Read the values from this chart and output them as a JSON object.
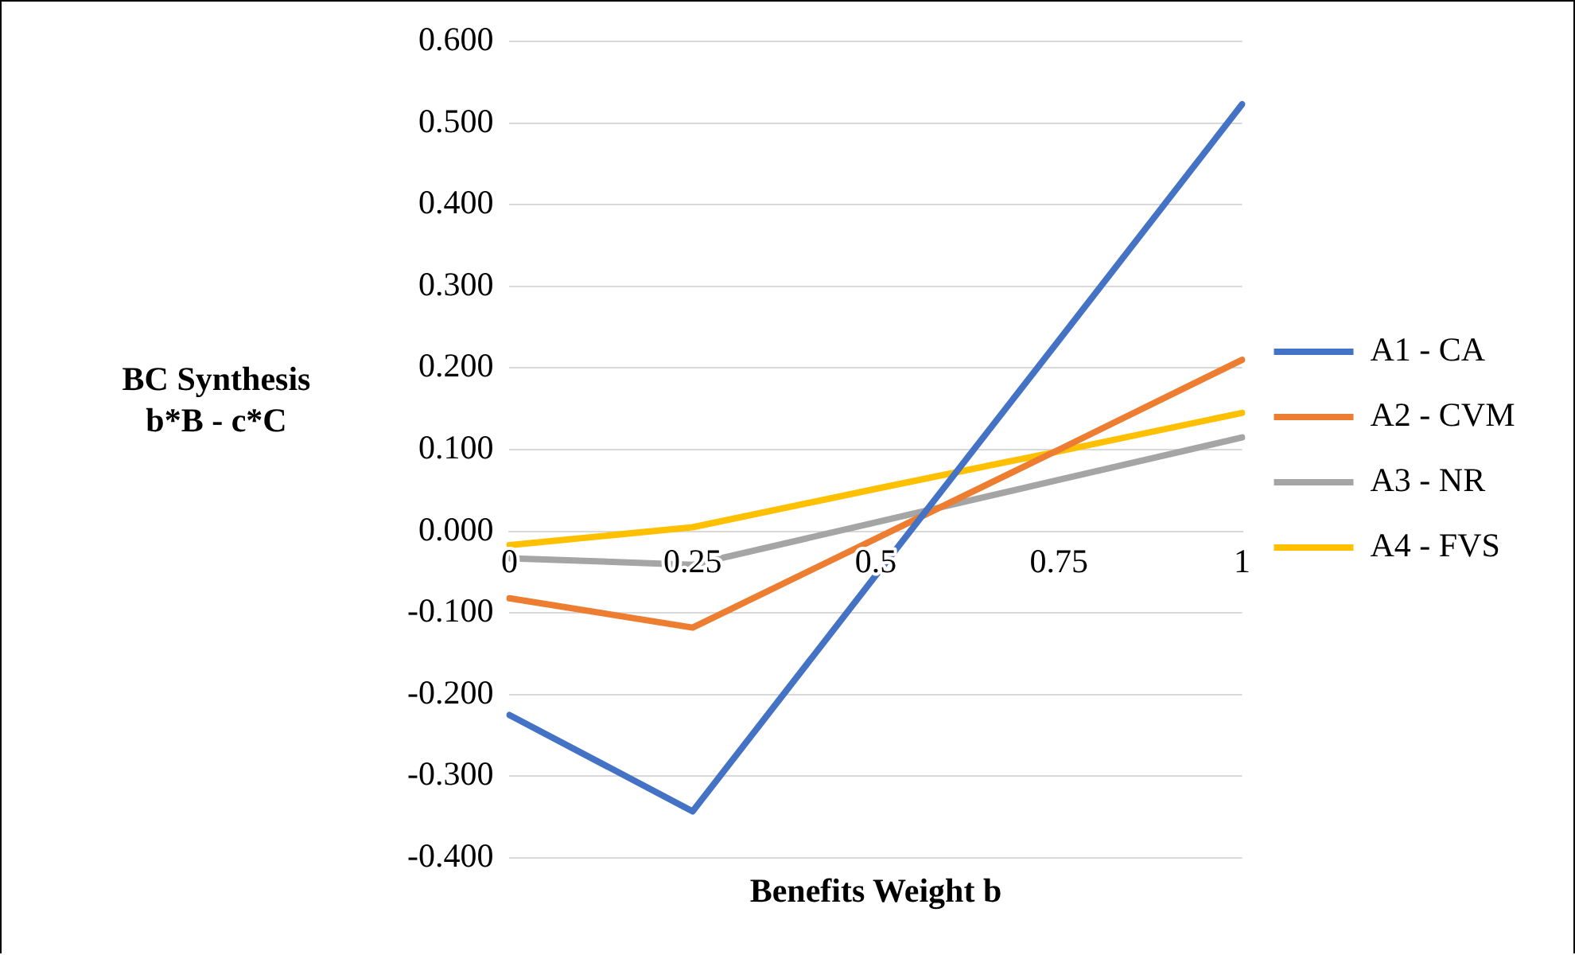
{
  "chart_data": {
    "type": "line",
    "xlabel": "Benefits Weight b",
    "ylabel": "BC Synthesis\nb*B - c*C",
    "categories": [
      "0",
      "0.25",
      "0.5",
      "0.75",
      "1"
    ],
    "series": [
      {
        "name": "A1 - CA",
        "color": "#4472c4",
        "values": [
          -0.225,
          -0.343,
          -0.054,
          0.234,
          0.523
        ]
      },
      {
        "name": "A2 - CVM",
        "color": "#ed7d31",
        "values": [
          -0.082,
          -0.118,
          -0.009,
          0.1,
          0.21
        ]
      },
      {
        "name": "A3 - NR",
        "color": "#a5a5a5",
        "values": [
          -0.033,
          -0.041,
          0.011,
          0.063,
          0.115
        ]
      },
      {
        "name": "A4 - FVS",
        "color": "#ffc000",
        "values": [
          -0.017,
          0.005,
          0.052,
          0.098,
          0.145
        ]
      }
    ],
    "ylim": [
      -0.4,
      0.6
    ],
    "yticks": [
      {
        "value": -0.4,
        "label": "-0.400"
      },
      {
        "value": -0.3,
        "label": "-0.300"
      },
      {
        "value": -0.2,
        "label": "-0.200"
      },
      {
        "value": -0.1,
        "label": "-0.100"
      },
      {
        "value": 0,
        "label": "0.000"
      },
      {
        "value": 0.1,
        "label": "0.100"
      },
      {
        "value": 0.2,
        "label": "0.200"
      },
      {
        "value": 0.3,
        "label": "0.300"
      },
      {
        "value": 0.4,
        "label": "0.400"
      },
      {
        "value": 0.5,
        "label": "0.500"
      },
      {
        "value": 0.6,
        "label": "0.600"
      }
    ],
    "grid": "y",
    "legend": "right",
    "marker": "none",
    "line_style": "solid"
  }
}
